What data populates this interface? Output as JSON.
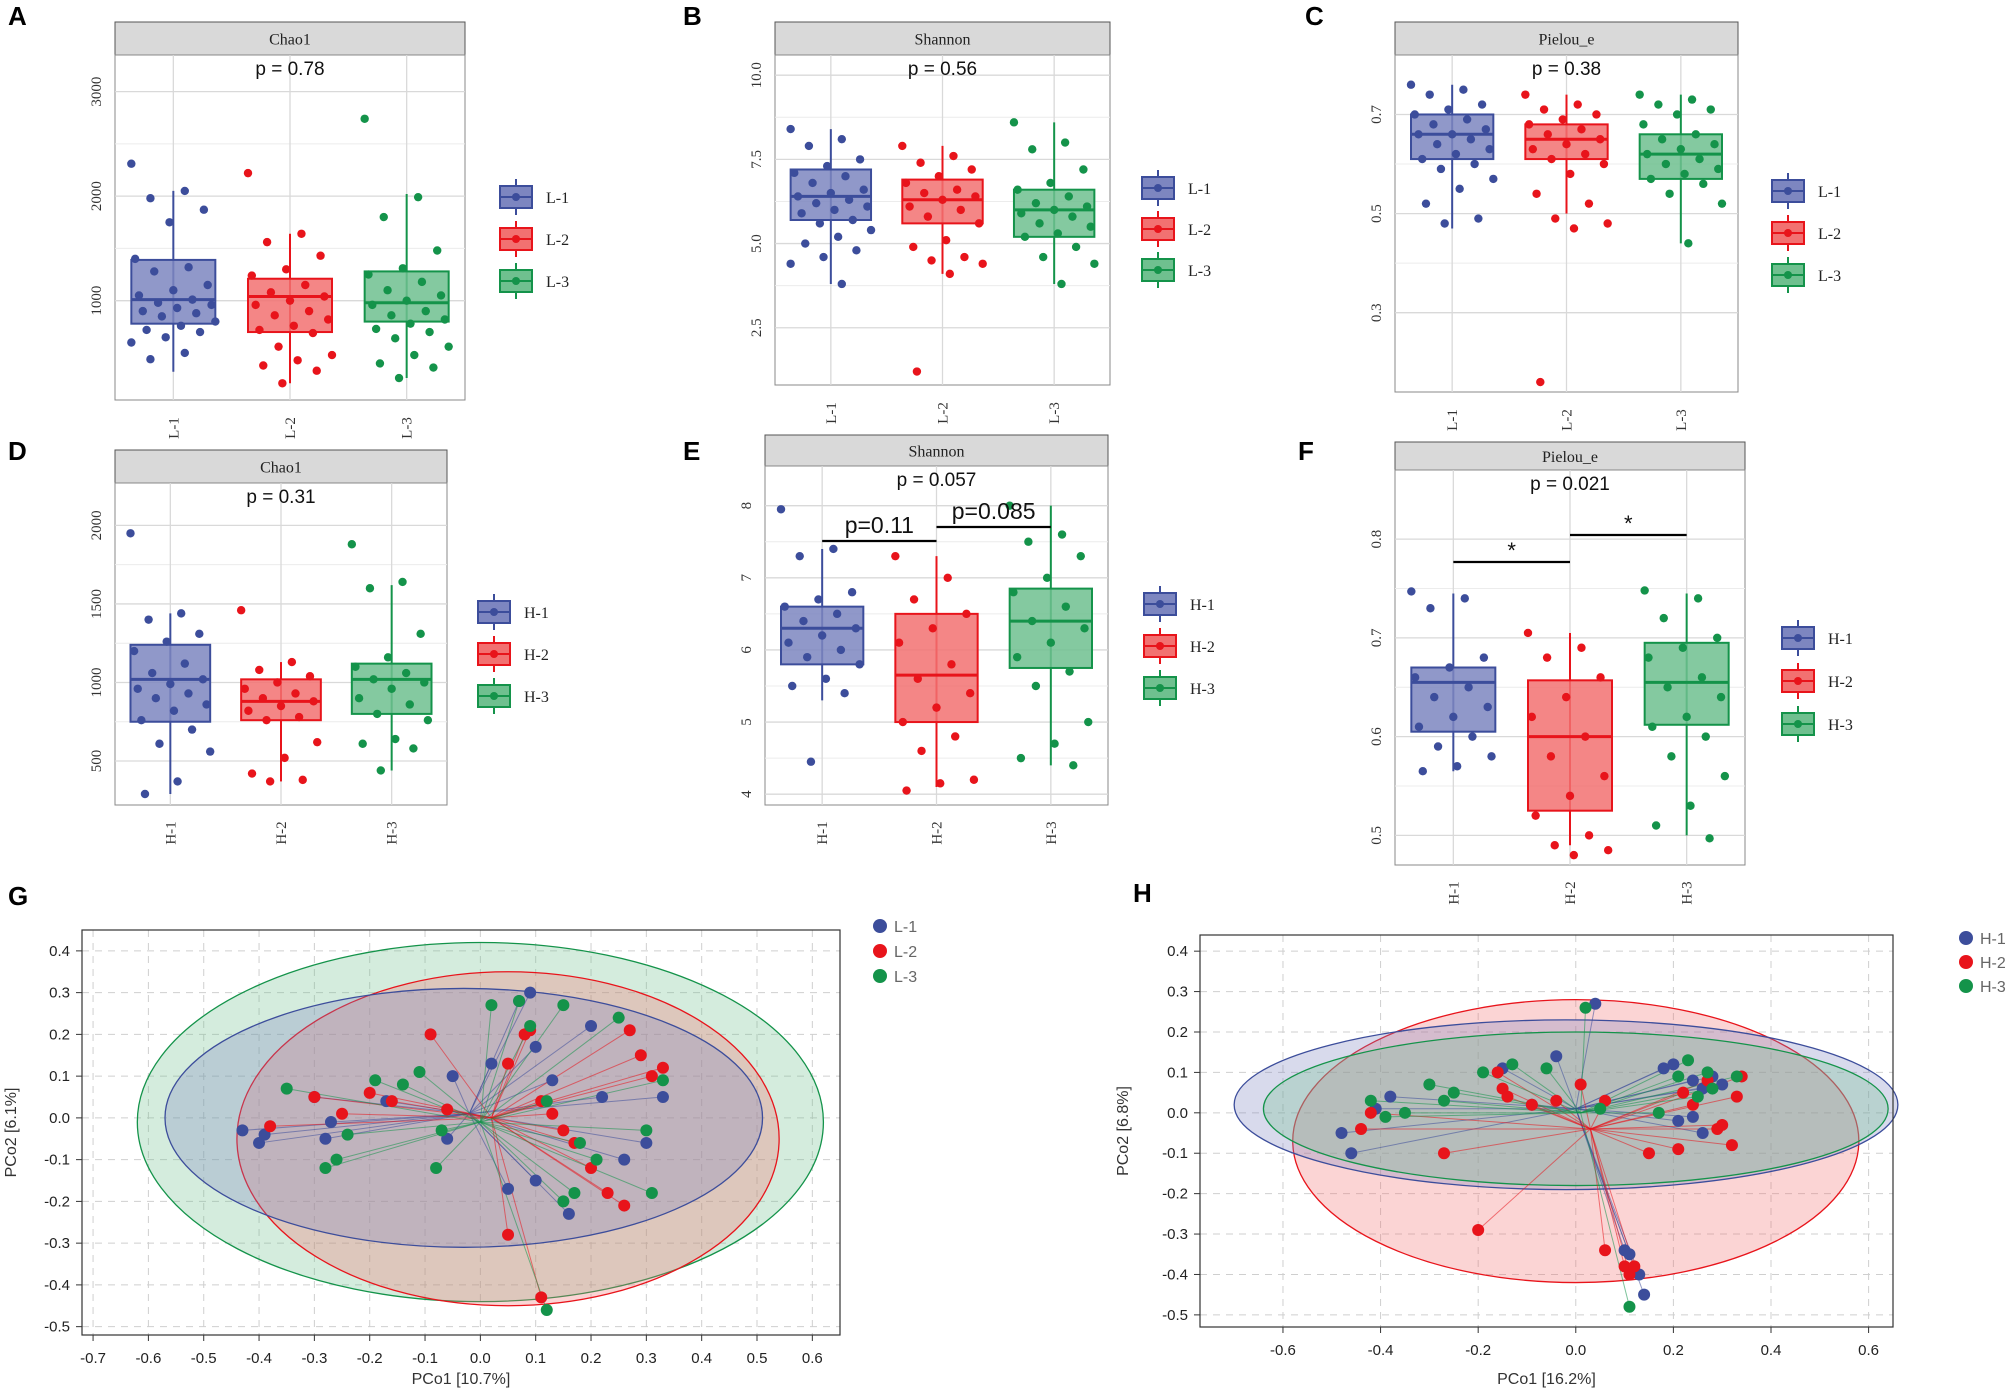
{
  "colors": {
    "g1": "#3c4d9b",
    "g2": "#e8141b",
    "g3": "#14934a",
    "g1_fill": "#7d86c0",
    "g2_fill": "#f27171",
    "g3_fill": "#6fc08f",
    "strip": "#d9d9d9",
    "grid": "#d9d9d9"
  },
  "chart_data": [
    {
      "panel": "A",
      "type": "box",
      "title": "Chao1",
      "pvalue": "p = 0.78",
      "categories": [
        "L-1",
        "L-2",
        "L-3"
      ],
      "yticks": [
        1000,
        2000,
        3000
      ],
      "ylim": [
        50,
        3350
      ],
      "boxes": [
        {
          "q1": 780,
          "median": 1010,
          "q3": 1390,
          "lo": 320,
          "hi": 2050
        },
        {
          "q1": 700,
          "median": 1040,
          "q3": 1210,
          "lo": 210,
          "hi": 1640
        },
        {
          "q1": 800,
          "median": 980,
          "q3": 1280,
          "lo": 260,
          "hi": 2020
        }
      ],
      "points": [
        [
          2310,
          2050,
          1980,
          1870,
          1750,
          1400,
          1320,
          1280,
          1150,
          1100,
          1050,
          1010,
          980,
          960,
          930,
          900,
          880,
          850,
          800,
          760,
          720,
          700,
          650,
          600,
          500,
          440
        ],
        [
          2220,
          1640,
          1560,
          1430,
          1300,
          1240,
          1150,
          1080,
          1040,
          1000,
          960,
          900,
          860,
          820,
          760,
          720,
          690,
          560,
          480,
          430,
          380,
          330,
          210
        ],
        [
          2740,
          1990,
          1800,
          1480,
          1310,
          1250,
          1180,
          1100,
          1050,
          1000,
          960,
          900,
          860,
          820,
          780,
          730,
          700,
          640,
          560,
          480,
          400,
          360,
          260
        ]
      ],
      "legend": [
        "L-1",
        "L-2",
        "L-3"
      ]
    },
    {
      "panel": "B",
      "type": "box",
      "title": "Shannon",
      "pvalue": "p = 0.56",
      "categories": [
        "L-1",
        "L-2",
        "L-3"
      ],
      "yticks": [
        2.5,
        5.0,
        7.5,
        10.0
      ],
      "ylim": [
        0.8,
        10.6
      ],
      "boxes": [
        {
          "q1": 5.7,
          "median": 6.4,
          "q3": 7.2,
          "lo": 3.8,
          "hi": 8.4
        },
        {
          "q1": 5.6,
          "median": 6.3,
          "q3": 6.9,
          "lo": 4.1,
          "hi": 7.9
        },
        {
          "q1": 5.2,
          "median": 6.0,
          "q3": 6.6,
          "lo": 3.8,
          "hi": 8.6
        }
      ],
      "points": [
        [
          8.4,
          8.1,
          7.9,
          7.5,
          7.3,
          7.1,
          7.0,
          6.8,
          6.6,
          6.5,
          6.4,
          6.3,
          6.2,
          6.1,
          6.0,
          5.9,
          5.7,
          5.6,
          5.4,
          5.2,
          5.0,
          4.8,
          4.6,
          4.4,
          3.8
        ],
        [
          7.9,
          7.6,
          7.4,
          7.2,
          7.0,
          6.8,
          6.6,
          6.5,
          6.4,
          6.3,
          6.1,
          6.0,
          5.8,
          5.6,
          5.1,
          4.9,
          4.6,
          4.5,
          4.4,
          4.1,
          1.2
        ],
        [
          8.6,
          8.0,
          7.8,
          7.2,
          6.8,
          6.6,
          6.4,
          6.2,
          6.1,
          6.0,
          5.9,
          5.8,
          5.6,
          5.5,
          5.3,
          5.2,
          4.9,
          4.6,
          4.4,
          3.8
        ]
      ],
      "legend": [
        "L-1",
        "L-2",
        "L-3"
      ]
    },
    {
      "panel": "C",
      "type": "box",
      "title": "Pielou_e",
      "pvalue": "p = 0.38",
      "categories": [
        "L-1",
        "L-2",
        "L-3"
      ],
      "yticks": [
        0.3,
        0.5,
        0.7
      ],
      "ylim": [
        0.14,
        0.82
      ],
      "boxes": [
        {
          "q1": 0.61,
          "median": 0.66,
          "q3": 0.7,
          "lo": 0.47,
          "hi": 0.76
        },
        {
          "q1": 0.61,
          "median": 0.65,
          "q3": 0.68,
          "lo": 0.5,
          "hi": 0.74
        },
        {
          "q1": 0.57,
          "median": 0.62,
          "q3": 0.66,
          "lo": 0.44,
          "hi": 0.74
        }
      ],
      "points": [
        [
          0.76,
          0.75,
          0.74,
          0.72,
          0.71,
          0.7,
          0.69,
          0.68,
          0.67,
          0.66,
          0.66,
          0.65,
          0.64,
          0.63,
          0.62,
          0.61,
          0.6,
          0.59,
          0.57,
          0.55,
          0.52,
          0.49,
          0.48
        ],
        [
          0.74,
          0.72,
          0.71,
          0.7,
          0.69,
          0.68,
          0.67,
          0.66,
          0.65,
          0.64,
          0.63,
          0.62,
          0.61,
          0.6,
          0.58,
          0.54,
          0.52,
          0.49,
          0.48,
          0.47,
          0.16
        ],
        [
          0.74,
          0.73,
          0.72,
          0.71,
          0.7,
          0.68,
          0.66,
          0.65,
          0.64,
          0.63,
          0.62,
          0.61,
          0.6,
          0.59,
          0.58,
          0.57,
          0.56,
          0.54,
          0.52,
          0.44
        ]
      ],
      "legend": [
        "L-1",
        "L-2",
        "L-3"
      ]
    },
    {
      "panel": "D",
      "type": "box",
      "title": "Chao1",
      "pvalue": "p = 0.31",
      "categories": [
        "H-1",
        "H-2",
        "H-3"
      ],
      "yticks": [
        500,
        1000,
        1500,
        2000
      ],
      "ylim": [
        220,
        2270
      ],
      "boxes": [
        {
          "q1": 750,
          "median": 1020,
          "q3": 1240,
          "lo": 290,
          "hi": 1440
        },
        {
          "q1": 760,
          "median": 880,
          "q3": 1020,
          "lo": 370,
          "hi": 1130
        },
        {
          "q1": 800,
          "median": 1020,
          "q3": 1120,
          "lo": 440,
          "hi": 1620
        }
      ],
      "points": [
        [
          1950,
          1440,
          1400,
          1310,
          1260,
          1200,
          1120,
          1060,
          1020,
          990,
          960,
          930,
          900,
          860,
          820,
          760,
          700,
          610,
          560,
          370,
          290
        ],
        [
          1460,
          1130,
          1080,
          1040,
          1000,
          960,
          930,
          900,
          880,
          850,
          820,
          780,
          760,
          620,
          520,
          420,
          380,
          370
        ],
        [
          1880,
          1640,
          1600,
          1310,
          1160,
          1100,
          1060,
          1020,
          1000,
          960,
          900,
          860,
          800,
          760,
          640,
          610,
          580,
          440
        ]
      ],
      "legend": [
        "H-1",
        "H-2",
        "H-3"
      ]
    },
    {
      "panel": "E",
      "type": "box",
      "title": "Shannon",
      "pvalue": "p = 0.057",
      "categories": [
        "H-1",
        "H-2",
        "H-3"
      ],
      "yticks": [
        4,
        5,
        6,
        7,
        8
      ],
      "ylim": [
        3.85,
        8.55
      ],
      "boxes": [
        {
          "q1": 5.8,
          "median": 6.3,
          "q3": 6.6,
          "lo": 5.3,
          "hi": 7.4
        },
        {
          "q1": 5.0,
          "median": 5.65,
          "q3": 6.5,
          "lo": 4.1,
          "hi": 7.3
        },
        {
          "q1": 5.75,
          "median": 6.4,
          "q3": 6.85,
          "lo": 4.4,
          "hi": 8.0
        }
      ],
      "points": [
        [
          7.95,
          7.4,
          7.3,
          6.8,
          6.7,
          6.6,
          6.5,
          6.4,
          6.3,
          6.2,
          6.1,
          6.0,
          5.9,
          5.8,
          5.6,
          5.5,
          5.4,
          4.45
        ],
        [
          7.3,
          7.0,
          6.7,
          6.5,
          6.3,
          6.1,
          5.8,
          5.6,
          5.4,
          5.2,
          5.0,
          4.8,
          4.6,
          4.2,
          4.15,
          4.05
        ],
        [
          8.0,
          7.6,
          7.5,
          7.3,
          7.0,
          6.8,
          6.6,
          6.4,
          6.3,
          6.1,
          5.9,
          5.7,
          5.5,
          5.0,
          4.7,
          4.5,
          4.4
        ]
      ],
      "brackets": [
        {
          "from": 0,
          "to": 1,
          "label": "p=0.11"
        },
        {
          "from": 1,
          "to": 2,
          "label": "p=0.085"
        }
      ],
      "legend": [
        "H-1",
        "H-2",
        "H-3"
      ]
    },
    {
      "panel": "F",
      "type": "box",
      "title": "Pielou_e",
      "pvalue": "p = 0.021",
      "categories": [
        "H-1",
        "H-2",
        "H-3"
      ],
      "yticks": [
        0.5,
        0.6,
        0.7,
        0.8
      ],
      "ylim": [
        0.47,
        0.87
      ],
      "boxes": [
        {
          "q1": 0.605,
          "median": 0.655,
          "q3": 0.67,
          "lo": 0.565,
          "hi": 0.745
        },
        {
          "q1": 0.525,
          "median": 0.6,
          "q3": 0.657,
          "lo": 0.49,
          "hi": 0.705
        },
        {
          "q1": 0.612,
          "median": 0.655,
          "q3": 0.695,
          "lo": 0.5,
          "hi": 0.745
        }
      ],
      "points": [
        [
          0.747,
          0.74,
          0.73,
          0.68,
          0.67,
          0.66,
          0.65,
          0.64,
          0.63,
          0.62,
          0.61,
          0.6,
          0.59,
          0.58,
          0.57,
          0.565
        ],
        [
          0.705,
          0.69,
          0.68,
          0.66,
          0.64,
          0.62,
          0.6,
          0.58,
          0.56,
          0.54,
          0.52,
          0.5,
          0.49,
          0.485,
          0.48
        ],
        [
          0.748,
          0.74,
          0.72,
          0.7,
          0.69,
          0.68,
          0.66,
          0.65,
          0.64,
          0.62,
          0.61,
          0.6,
          0.58,
          0.56,
          0.53,
          0.51,
          0.497
        ]
      ],
      "brackets": [
        {
          "from": 0,
          "to": 1,
          "label": "*"
        },
        {
          "from": 1,
          "to": 2,
          "label": "*"
        }
      ],
      "legend": [
        "H-1",
        "H-2",
        "H-3"
      ]
    },
    {
      "panel": "G",
      "type": "scatter",
      "subtype": "pcoa",
      "xlabel": "PCo1 [10.7%]",
      "ylabel": "PCo2 [6.1%]",
      "xlim": [
        -0.72,
        0.65
      ],
      "ylim": [
        -0.52,
        0.45
      ],
      "xticks": [
        -0.7,
        -0.6,
        -0.5,
        -0.4,
        -0.3,
        -0.2,
        -0.1,
        0.0,
        0.1,
        0.2,
        0.3,
        0.4,
        0.5,
        0.6
      ],
      "yticks": [
        0.4,
        0.3,
        0.2,
        0.1,
        0.0,
        -0.1,
        -0.2,
        -0.3,
        -0.4,
        -0.5
      ],
      "legend": [
        "L-1",
        "L-2",
        "L-3"
      ],
      "series": [
        {
          "name": "L-1",
          "centroid": [
            -0.02,
            0.01
          ],
          "ellipse": {
            "cx": -0.03,
            "cy": 0.0,
            "rx": 0.54,
            "ry": 0.31
          },
          "x": [
            -0.43,
            -0.4,
            -0.39,
            -0.3,
            -0.28,
            -0.27,
            -0.17,
            -0.06,
            -0.05,
            0.02,
            0.07,
            0.09,
            0.1,
            0.13,
            0.2,
            0.22,
            0.26,
            0.3,
            0.33,
            0.16,
            0.1,
            0.05
          ],
          "y": [
            -0.03,
            -0.06,
            -0.04,
            0.05,
            -0.05,
            -0.01,
            0.04,
            -0.05,
            0.1,
            0.13,
            0.28,
            0.3,
            0.17,
            0.09,
            0.22,
            0.05,
            -0.1,
            -0.06,
            0.05,
            -0.23,
            -0.15,
            -0.17
          ]
        },
        {
          "name": "L-2",
          "centroid": [
            0.02,
            0.0
          ],
          "ellipse": {
            "cx": 0.05,
            "cy": -0.05,
            "rx": 0.49,
            "ry": 0.4
          },
          "x": [
            -0.38,
            -0.3,
            -0.25,
            -0.2,
            -0.16,
            -0.09,
            -0.06,
            0.05,
            0.08,
            0.09,
            0.11,
            0.13,
            0.15,
            0.17,
            0.2,
            0.23,
            0.27,
            0.29,
            0.31,
            0.33,
            0.26,
            0.05,
            0.11
          ],
          "y": [
            -0.02,
            0.05,
            0.01,
            0.06,
            0.04,
            0.2,
            0.02,
            0.13,
            0.2,
            0.21,
            0.04,
            0.01,
            -0.03,
            -0.06,
            -0.12,
            -0.18,
            0.21,
            0.15,
            0.1,
            0.12,
            -0.21,
            -0.28,
            -0.43
          ]
        },
        {
          "name": "L-3",
          "centroid": [
            0.0,
            -0.01
          ],
          "ellipse": {
            "cx": 0.0,
            "cy": -0.01,
            "rx": 0.62,
            "ry": 0.43
          },
          "x": [
            -0.35,
            -0.28,
            -0.26,
            -0.24,
            -0.19,
            -0.14,
            -0.11,
            -0.08,
            -0.07,
            0.02,
            0.07,
            0.09,
            0.12,
            0.15,
            0.17,
            0.18,
            0.21,
            0.25,
            0.31,
            0.33,
            0.3,
            0.15,
            0.12
          ],
          "y": [
            0.07,
            -0.12,
            -0.1,
            -0.04,
            0.09,
            0.08,
            0.11,
            -0.12,
            -0.03,
            0.27,
            0.28,
            0.22,
            0.04,
            0.27,
            -0.18,
            -0.06,
            -0.1,
            0.24,
            -0.18,
            0.09,
            -0.03,
            -0.2,
            -0.46
          ]
        }
      ]
    },
    {
      "panel": "H",
      "type": "scatter",
      "subtype": "pcoa",
      "xlabel": "PCo1 [16.2%]",
      "ylabel": "PCo2 [6.8%]",
      "xlim": [
        -0.77,
        0.65
      ],
      "ylim": [
        -0.53,
        0.44
      ],
      "xticks": [
        -0.6,
        -0.4,
        -0.2,
        0.0,
        0.2,
        0.4,
        0.6
      ],
      "yticks": [
        0.4,
        0.3,
        0.2,
        0.1,
        0.0,
        -0.1,
        -0.2,
        -0.3,
        -0.4,
        -0.5
      ],
      "legend": [
        "H-1",
        "H-2",
        "H-3"
      ],
      "series": [
        {
          "name": "H-1",
          "centroid": [
            0.0,
            0.01
          ],
          "ellipse": {
            "cx": -0.02,
            "cy": 0.02,
            "rx": 0.68,
            "ry": 0.21
          },
          "x": [
            -0.48,
            -0.46,
            -0.41,
            -0.38,
            -0.15,
            -0.09,
            -0.04,
            0.04,
            0.18,
            0.2,
            0.24,
            0.26,
            0.28,
            0.3,
            0.21,
            0.24,
            0.26,
            0.1,
            0.11,
            0.13,
            0.14
          ],
          "y": [
            -0.05,
            -0.1,
            0.01,
            0.04,
            0.11,
            0.02,
            0.14,
            0.27,
            0.11,
            0.12,
            0.08,
            0.06,
            0.09,
            0.07,
            -0.02,
            -0.01,
            -0.05,
            -0.34,
            -0.35,
            -0.4,
            -0.45
          ]
        },
        {
          "name": "H-2",
          "centroid": [
            0.03,
            -0.04
          ],
          "ellipse": {
            "cx": 0.0,
            "cy": -0.07,
            "rx": 0.58,
            "ry": 0.35
          },
          "x": [
            -0.44,
            -0.42,
            -0.27,
            -0.2,
            -0.16,
            -0.15,
            -0.14,
            -0.09,
            -0.04,
            0.01,
            0.06,
            0.21,
            0.22,
            0.24,
            0.27,
            0.29,
            0.3,
            0.32,
            0.33,
            0.34,
            0.15,
            0.06,
            0.1,
            0.11,
            0.12
          ],
          "y": [
            -0.04,
            0.0,
            -0.1,
            -0.29,
            0.1,
            0.06,
            0.04,
            0.02,
            0.03,
            0.07,
            0.03,
            -0.09,
            0.05,
            0.02,
            0.08,
            -0.04,
            -0.03,
            -0.08,
            0.04,
            0.09,
            -0.1,
            -0.34,
            -0.38,
            -0.4,
            -0.38
          ]
        },
        {
          "name": "H-3",
          "centroid": [
            0.01,
            0.0
          ],
          "ellipse": {
            "cx": 0.0,
            "cy": 0.01,
            "rx": 0.64,
            "ry": 0.19
          },
          "x": [
            -0.42,
            -0.39,
            -0.35,
            -0.3,
            -0.27,
            -0.25,
            -0.19,
            -0.13,
            -0.06,
            0.02,
            0.05,
            0.17,
            0.21,
            0.23,
            0.25,
            0.27,
            0.28,
            0.33,
            0.11
          ],
          "y": [
            0.03,
            -0.01,
            0.0,
            0.07,
            0.03,
            0.05,
            0.1,
            0.12,
            0.11,
            0.26,
            0.01,
            0.0,
            0.09,
            0.13,
            0.04,
            0.1,
            0.06,
            0.09,
            -0.48
          ]
        }
      ]
    }
  ]
}
